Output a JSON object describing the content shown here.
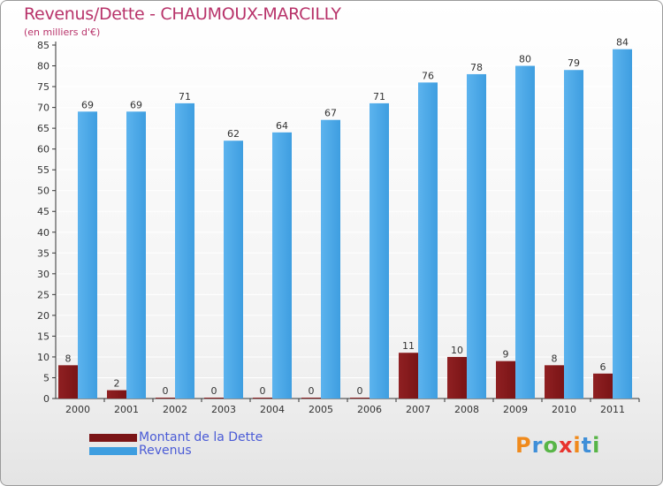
{
  "title": "Revenus/Dette - CHAUMOUX-MARCILLY",
  "subtitle": "(en milliers d'€)",
  "logo": {
    "text": "Proxiti",
    "letter_colors": [
      "#f08a1c",
      "#3f8fd8",
      "#58b547",
      "#e8342e",
      "#f08a1c",
      "#3f8fd8",
      "#58b547"
    ]
  },
  "colors": {
    "debt": "#7a1416",
    "revenue": "#3e9ee0",
    "axis": "#333333",
    "grid": "#ffffff",
    "tick_text": "#333333"
  },
  "legend": [
    {
      "label": "Montant de la Dette",
      "color": "#7a1416"
    },
    {
      "label": "Revenus",
      "color": "#3e9ee0"
    }
  ],
  "chart_data": {
    "type": "bar",
    "title": "Revenus/Dette - CHAUMOUX-MARCILLY",
    "ylabel": "(en milliers d'€)",
    "xlabel": "",
    "categories": [
      "2000",
      "2001",
      "2002",
      "2003",
      "2004",
      "2005",
      "2006",
      "2007",
      "2008",
      "2009",
      "2010",
      "2011"
    ],
    "series": [
      {
        "name": "Montant de la Dette",
        "values": [
          8,
          2,
          0,
          0,
          0,
          0,
          0,
          11,
          10,
          9,
          8,
          6
        ]
      },
      {
        "name": "Revenus",
        "values": [
          69,
          69,
          71,
          62,
          64,
          67,
          71,
          76,
          78,
          80,
          79,
          84
        ]
      }
    ],
    "ylim": [
      0,
      85
    ],
    "yticks": [
      0,
      5,
      10,
      15,
      20,
      25,
      30,
      35,
      40,
      45,
      50,
      55,
      60,
      65,
      70,
      75,
      80,
      85
    ],
    "grid": true,
    "legend_position": "bottom-left"
  }
}
